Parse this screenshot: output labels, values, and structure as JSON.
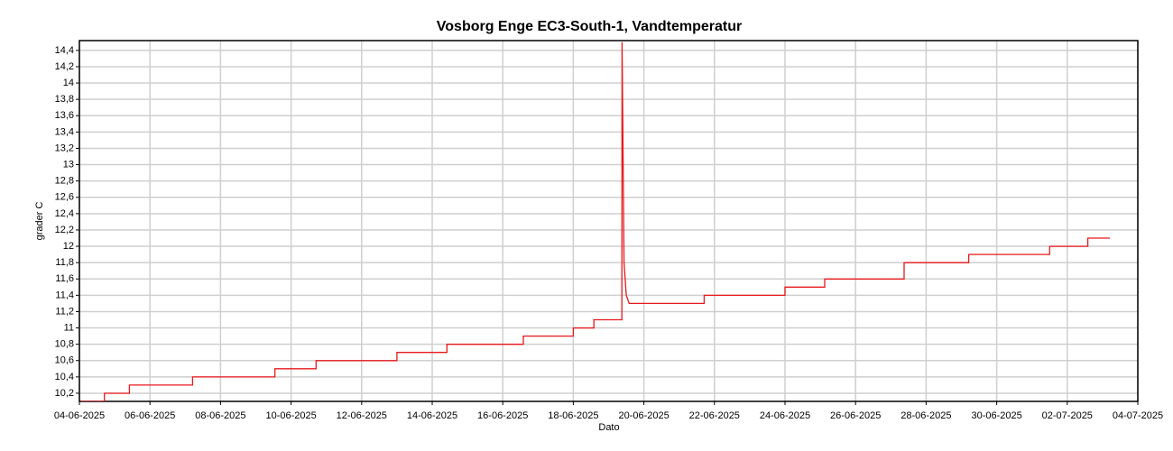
{
  "chart_data": {
    "type": "line",
    "title": "Vosborg Enge EC3-South-1, Vandtemperatur",
    "xlabel": "Dato",
    "ylabel": "grader C",
    "x": [
      "2025-06-04T01:00",
      "2025-06-04T17:00",
      "2025-06-04T17:00",
      "2025-06-05T10:00",
      "2025-06-05T10:00",
      "2025-06-07T05:00",
      "2025-06-07T05:00",
      "2025-06-09T13:00",
      "2025-06-09T13:00",
      "2025-06-10T17:00",
      "2025-06-10T17:00",
      "2025-06-13T00:00",
      "2025-06-13T00:00",
      "2025-06-14T10:00",
      "2025-06-14T10:00",
      "2025-06-16T14:00",
      "2025-06-16T14:00",
      "2025-06-18T00:00",
      "2025-06-18T00:00",
      "2025-06-18T14:00",
      "2025-06-18T14:00",
      "2025-06-19T09:00",
      "2025-06-19T09:10",
      "2025-06-19T10:30",
      "2025-06-19T12:00",
      "2025-06-19T14:00",
      "2025-06-21T17:00",
      "2025-06-21T17:00",
      "2025-06-24T00:00",
      "2025-06-24T00:00",
      "2025-06-25T03:00",
      "2025-06-25T03:00",
      "2025-06-27T09:00",
      "2025-06-27T09:00",
      "2025-06-29T05:00",
      "2025-06-29T05:00",
      "2025-07-01T12:00",
      "2025-07-01T12:00",
      "2025-07-02T14:00",
      "2025-07-02T14:00",
      "2025-07-03T05:00"
    ],
    "series": [
      {
        "name": "Vandtemperatur",
        "color": "#e8191c",
        "values": [
          10.1,
          10.1,
          10.2,
          10.2,
          10.3,
          10.3,
          10.4,
          10.4,
          10.5,
          10.5,
          10.6,
          10.6,
          10.7,
          10.7,
          10.8,
          10.8,
          10.9,
          10.9,
          11.0,
          11.0,
          11.1,
          11.1,
          14.5,
          11.8,
          11.4,
          11.3,
          11.3,
          11.4,
          11.4,
          11.5,
          11.5,
          11.6,
          11.6,
          11.8,
          11.8,
          11.9,
          11.9,
          12.0,
          12.0,
          12.1,
          12.1
        ]
      }
    ],
    "xlim": [
      "2025-06-04",
      "2025-07-04"
    ],
    "xticks": [
      {
        "value": "2025-06-04",
        "label": "04-06-2025"
      },
      {
        "value": "2025-06-06",
        "label": "06-06-2025"
      },
      {
        "value": "2025-06-08",
        "label": "08-06-2025"
      },
      {
        "value": "2025-06-10",
        "label": "10-06-2025"
      },
      {
        "value": "2025-06-12",
        "label": "12-06-2025"
      },
      {
        "value": "2025-06-14",
        "label": "14-06-2025"
      },
      {
        "value": "2025-06-16",
        "label": "16-06-2025"
      },
      {
        "value": "2025-06-18",
        "label": "18-06-2025"
      },
      {
        "value": "2025-06-20",
        "label": "20-06-2025"
      },
      {
        "value": "2025-06-22",
        "label": "22-06-2025"
      },
      {
        "value": "2025-06-24",
        "label": "24-06-2025"
      },
      {
        "value": "2025-06-26",
        "label": "26-06-2025"
      },
      {
        "value": "2025-06-28",
        "label": "28-06-2025"
      },
      {
        "value": "2025-06-30",
        "label": "30-06-2025"
      },
      {
        "value": "2025-07-02",
        "label": "02-07-2025"
      },
      {
        "value": "2025-07-04",
        "label": "04-07-2025"
      }
    ],
    "ylim": [
      10.1,
      14.52
    ],
    "yticks": [
      {
        "value": 10.2,
        "label": "10,2"
      },
      {
        "value": 10.4,
        "label": "10,4"
      },
      {
        "value": 10.6,
        "label": "10,6"
      },
      {
        "value": 10.8,
        "label": "10,8"
      },
      11,
      {
        "value": 11.2,
        "label": "11,2"
      },
      {
        "value": 11.4,
        "label": "11,4"
      },
      {
        "value": 11.6,
        "label": "11,6"
      },
      {
        "value": 11.8,
        "label": "11,8"
      },
      12,
      {
        "value": 12.2,
        "label": "12,2"
      },
      {
        "value": 12.4,
        "label": "12,4"
      },
      {
        "value": 12.6,
        "label": "12,6"
      },
      {
        "value": 12.8,
        "label": "12,8"
      },
      13,
      {
        "value": 13.2,
        "label": "13,2"
      },
      {
        "value": 13.4,
        "label": "13,4"
      },
      {
        "value": 13.6,
        "label": "13,6"
      },
      {
        "value": 13.8,
        "label": "13,8"
      },
      14,
      {
        "value": 14.2,
        "label": "14,2"
      },
      {
        "value": 14.4,
        "label": "14,4"
      }
    ],
    "grid": true
  }
}
